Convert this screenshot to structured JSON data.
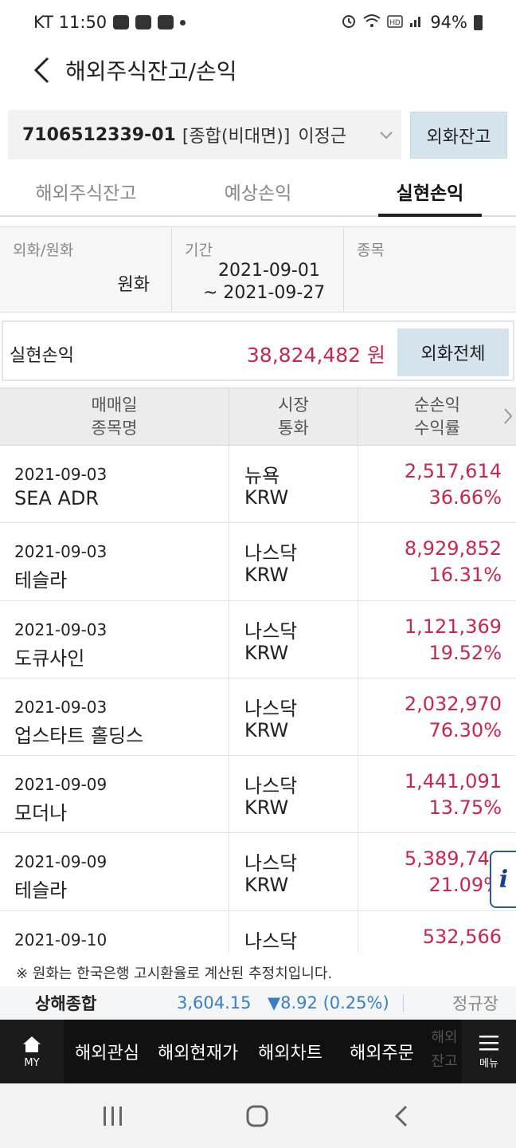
{
  "status_bar": {
    "carrier_time": "KT 11:50",
    "battery": "94%"
  },
  "header": {
    "title": "해외주식잔고/손익"
  },
  "account": {
    "number": "7106512339-01",
    "type": "[종합(비대면)]",
    "owner": "이정근",
    "fx_balance_button": "외화잔고"
  },
  "tabs": [
    {
      "label": "해외주식잔고",
      "active": false
    },
    {
      "label": "예상손익",
      "active": false
    },
    {
      "label": "실현손익",
      "active": true
    }
  ],
  "filter": {
    "currency_label": "외화/원화",
    "currency_value": "원화",
    "period_label": "기간",
    "period_from": "2021-09-01",
    "period_to": "~ 2021-09-27",
    "stock_label": "종목"
  },
  "summary": {
    "label": "실현손익",
    "value": "38,824,482 원",
    "button": "외화전체"
  },
  "table": {
    "headers": [
      {
        "line1": "매매일",
        "line2": "종목명"
      },
      {
        "line1": "시장",
        "line2": "통화"
      },
      {
        "line1": "순손익",
        "line2": "수익률"
      }
    ],
    "rows": [
      {
        "date": "2021-09-03",
        "name": "SEA ADR",
        "market": "뉴욕",
        "currency": "KRW",
        "profit": "2,517,614",
        "rate": "36.66%"
      },
      {
        "date": "2021-09-03",
        "name": "테슬라",
        "market": "나스닥",
        "currency": "KRW",
        "profit": "8,929,852",
        "rate": "16.31%"
      },
      {
        "date": "2021-09-03",
        "name": "도큐사인",
        "market": "나스닥",
        "currency": "KRW",
        "profit": "1,121,369",
        "rate": "19.52%"
      },
      {
        "date": "2021-09-03",
        "name": "업스타트 홀딩스",
        "market": "나스닥",
        "currency": "KRW",
        "profit": "2,032,970",
        "rate": "76.30%"
      },
      {
        "date": "2021-09-09",
        "name": "모더나",
        "market": "나스닥",
        "currency": "KRW",
        "profit": "1,441,091",
        "rate": "13.75%"
      },
      {
        "date": "2021-09-09",
        "name": "테슬라",
        "market": "나스닥",
        "currency": "KRW",
        "profit": "5,389,744",
        "rate": "21.09%"
      },
      {
        "date": "2021-09-10",
        "name": "",
        "market": "나스닥",
        "currency": "",
        "profit": "532,566",
        "rate": ""
      }
    ]
  },
  "info_button": "i",
  "note": "※ 원화는 한국은행 고시환율로 계산된 추정치입니다.",
  "ticker": {
    "name": "상해종합",
    "value": "3,604.15",
    "change": "▼8.92 (0.25%)",
    "session": "정규장"
  },
  "bottom_nav": {
    "my_label": "MY",
    "items": [
      "해외관심",
      "해외현재가",
      "해외차트",
      "해외주문"
    ],
    "partial": "해외잔고",
    "menu_label": "메뉴"
  },
  "colors": {
    "profit": "#c8264f",
    "ticker_down": "#3a7fc4",
    "button_bg": "#d5e3ec"
  }
}
